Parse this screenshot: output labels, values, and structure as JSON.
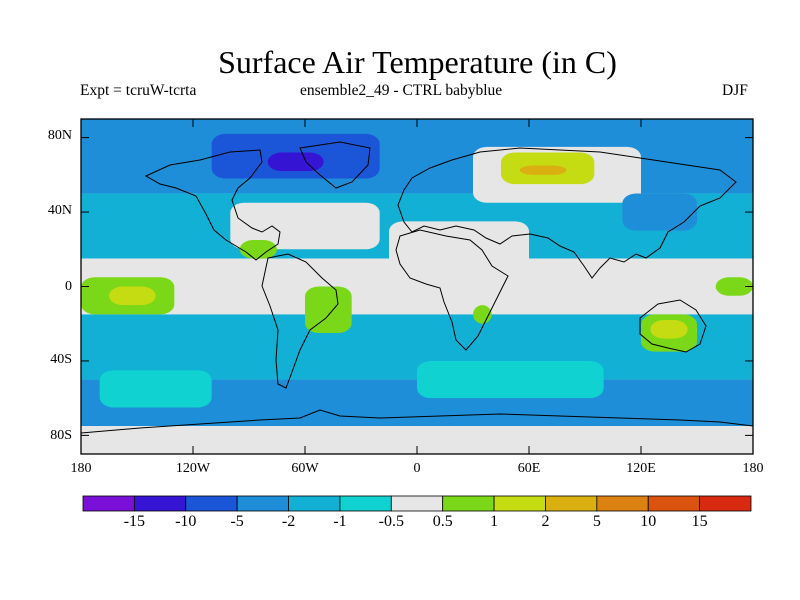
{
  "title": "Surface Air Temperature (in C)",
  "subtitle_left": "Expt = tcruW-tcrta",
  "subtitle_center": "ensemble2_49 - CTRL babyblue",
  "subtitle_right": "DJF",
  "lat_labels": [
    "80N",
    "40N",
    "0",
    "40S",
    "80S"
  ],
  "lon_labels": [
    "180",
    "120W",
    "60W",
    "0",
    "60E",
    "120E",
    "180"
  ],
  "chart_data": {
    "type": "heatmap",
    "lat_ticks": [
      80,
      40,
      0,
      -40,
      -80
    ],
    "lon_ticks": [
      -180,
      -120,
      -60,
      0,
      60,
      120,
      180
    ],
    "xlim": [
      -180,
      180
    ],
    "ylim": [
      -90,
      90
    ],
    "colorbar": {
      "colors": [
        "#7a10d8",
        "#3614d4",
        "#1c56d8",
        "#1e8ed8",
        "#11b0d4",
        "#10d2d0",
        "#e6e6e6",
        "#7ad818",
        "#c6dc12",
        "#dab010",
        "#dc8212",
        "#da5410",
        "#d82a10"
      ],
      "labels": [
        "-15",
        "-10",
        "-5",
        "-2",
        "-1",
        "-0.5",
        "0.5",
        "1",
        "2",
        "5",
        "10",
        "15"
      ]
    },
    "regions": [
      {
        "lon": [
          -180,
          180
        ],
        "lat": [
          50,
          90
        ],
        "level": 3
      },
      {
        "lon": [
          -180,
          180
        ],
        "lat": [
          15,
          50
        ],
        "level": 4
      },
      {
        "lon": [
          -180,
          180
        ],
        "lat": [
          -15,
          15
        ],
        "level": 6
      },
      {
        "lon": [
          -180,
          180
        ],
        "lat": [
          -50,
          -15
        ],
        "level": 4
      },
      {
        "lon": [
          -180,
          180
        ],
        "lat": [
          -75,
          -50
        ],
        "level": 3
      },
      {
        "lon": [
          -180,
          180
        ],
        "lat": [
          -90,
          -75
        ],
        "level": 6
      },
      {
        "lon": [
          -110,
          -20
        ],
        "lat": [
          58,
          82
        ],
        "level": 2
      },
      {
        "lon": [
          -80,
          -50
        ],
        "lat": [
          62,
          72
        ],
        "level": 1
      },
      {
        "lon": [
          -100,
          -20
        ],
        "lat": [
          20,
          45
        ],
        "level": 6
      },
      {
        "lon": [
          -15,
          60
        ],
        "lat": [
          0,
          35
        ],
        "level": 6
      },
      {
        "lon": [
          30,
          120
        ],
        "lat": [
          45,
          75
        ],
        "level": 6
      },
      {
        "lon": [
          45,
          95
        ],
        "lat": [
          55,
          72
        ],
        "level": 8
      },
      {
        "lon": [
          55,
          80
        ],
        "lat": [
          60,
          65
        ],
        "level": 9
      },
      {
        "lon": [
          -60,
          -35
        ],
        "lat": [
          -25,
          0
        ],
        "level": 7
      },
      {
        "lon": [
          -180,
          -130
        ],
        "lat": [
          -15,
          5
        ],
        "level": 7
      },
      {
        "lon": [
          -165,
          -140
        ],
        "lat": [
          -10,
          0
        ],
        "level": 8
      },
      {
        "lon": [
          120,
          150
        ],
        "lat": [
          -35,
          -15
        ],
        "level": 7
      },
      {
        "lon": [
          125,
          145
        ],
        "lat": [
          -28,
          -18
        ],
        "level": 8
      },
      {
        "lon": [
          160,
          180
        ],
        "lat": [
          -5,
          5
        ],
        "level": 7
      },
      {
        "lon": [
          30,
          40
        ],
        "lat": [
          -20,
          -10
        ],
        "level": 7
      },
      {
        "lon": [
          -95,
          -75
        ],
        "lat": [
          15,
          25
        ],
        "level": 7
      },
      {
        "lon": [
          110,
          150
        ],
        "lat": [
          30,
          50
        ],
        "level": 3
      },
      {
        "lon": [
          -170,
          -110
        ],
        "lat": [
          -65,
          -45
        ],
        "level": 5
      },
      {
        "lon": [
          0,
          100
        ],
        "lat": [
          -60,
          -40
        ],
        "level": 5
      }
    ]
  }
}
